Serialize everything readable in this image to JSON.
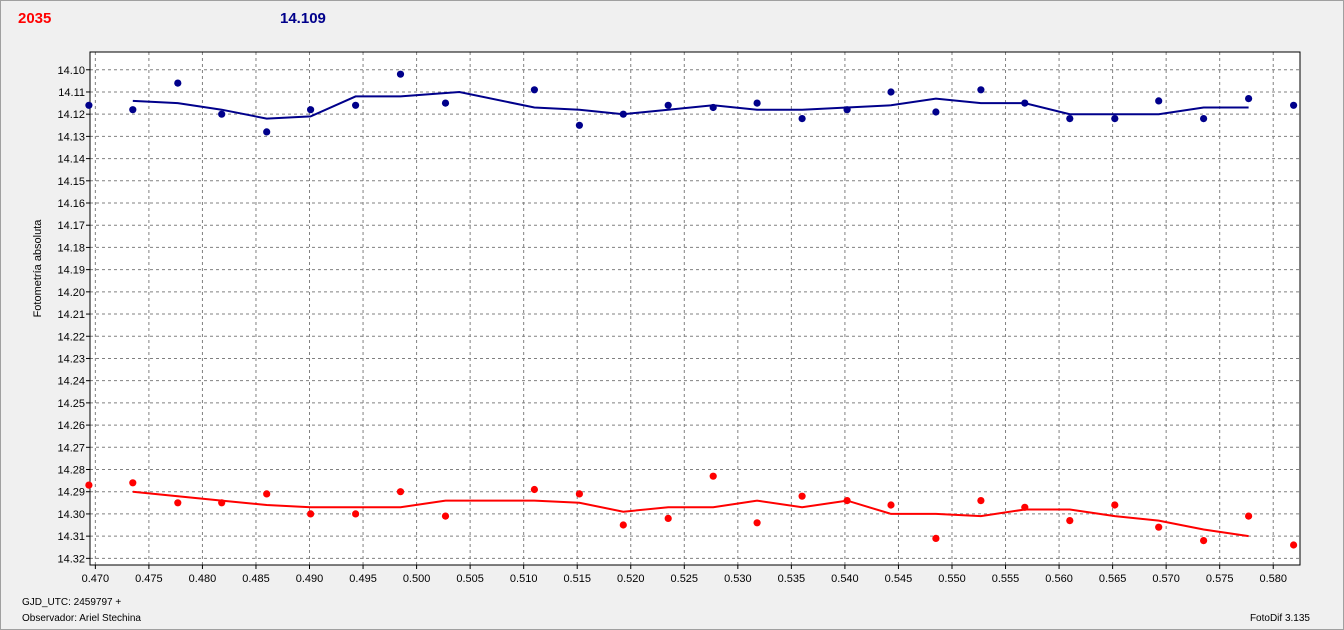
{
  "header": {
    "left_value": "2035",
    "right_value": "14.109"
  },
  "footer": {
    "gjd": "GJD_UTC: 2459797 +",
    "observer": "Observador: Ariel Stechina",
    "version": "FotoDif 3.135"
  },
  "colors": {
    "series_red": "#ff0000",
    "series_blue": "#00008b",
    "grid": "#808080",
    "plot_bg": "#ffffff"
  },
  "chart_data": {
    "type": "scatter",
    "ylabel": "Fotometría absoluta",
    "xlabel": "",
    "xlim": [
      0.4695,
      0.5825
    ],
    "ylim": [
      14.323,
      14.092
    ],
    "y_inverted": true,
    "grid": true,
    "xticks": [
      "0.470",
      "0.475",
      "0.480",
      "0.485",
      "0.490",
      "0.495",
      "0.500",
      "0.505",
      "0.510",
      "0.515",
      "0.520",
      "0.525",
      "0.530",
      "0.535",
      "0.540",
      "0.545",
      "0.550",
      "0.555",
      "0.560",
      "0.565",
      "0.570",
      "0.575",
      "0.580"
    ],
    "yticks": [
      "14.10",
      "14.11",
      "14.12",
      "14.13",
      "14.14",
      "14.15",
      "14.16",
      "14.17",
      "14.18",
      "14.19",
      "14.20",
      "14.21",
      "14.22",
      "14.23",
      "14.24",
      "14.25",
      "14.26",
      "14.27",
      "14.28",
      "14.29",
      "14.30",
      "14.31",
      "14.32"
    ],
    "series": [
      {
        "color": "#00008b",
        "points": [
          [
            0.4694,
            14.116
          ],
          [
            0.4735,
            14.118
          ],
          [
            0.4777,
            14.106
          ],
          [
            0.4818,
            14.12
          ],
          [
            0.486,
            14.128
          ],
          [
            0.4901,
            14.118
          ],
          [
            0.4943,
            14.116
          ],
          [
            0.4985,
            14.102
          ],
          [
            0.5027,
            14.115
          ],
          [
            0.511,
            14.109
          ],
          [
            0.5152,
            14.125
          ],
          [
            0.5193,
            14.12
          ],
          [
            0.5235,
            14.116
          ],
          [
            0.5277,
            14.117
          ],
          [
            0.5318,
            14.115
          ],
          [
            0.536,
            14.122
          ],
          [
            0.5402,
            14.118
          ],
          [
            0.5443,
            14.11
          ],
          [
            0.5485,
            14.119
          ],
          [
            0.5527,
            14.109
          ],
          [
            0.5568,
            14.115
          ],
          [
            0.561,
            14.122
          ],
          [
            0.5652,
            14.122
          ],
          [
            0.5693,
            14.114
          ],
          [
            0.5735,
            14.122
          ],
          [
            0.5777,
            14.113
          ],
          [
            0.5819,
            14.116
          ]
        ],
        "line": [
          [
            0.4735,
            14.114
          ],
          [
            0.4777,
            14.115
          ],
          [
            0.4818,
            14.118
          ],
          [
            0.486,
            14.122
          ],
          [
            0.4901,
            14.121
          ],
          [
            0.4943,
            14.112
          ],
          [
            0.4985,
            14.112
          ],
          [
            0.504,
            14.11
          ],
          [
            0.511,
            14.117
          ],
          [
            0.5152,
            14.118
          ],
          [
            0.5193,
            14.12
          ],
          [
            0.5235,
            14.118
          ],
          [
            0.5277,
            14.116
          ],
          [
            0.5318,
            14.118
          ],
          [
            0.536,
            14.118
          ],
          [
            0.5402,
            14.117
          ],
          [
            0.5443,
            14.116
          ],
          [
            0.5485,
            14.113
          ],
          [
            0.5527,
            14.115
          ],
          [
            0.5568,
            14.115
          ],
          [
            0.561,
            14.12
          ],
          [
            0.5652,
            14.12
          ],
          [
            0.5693,
            14.12
          ],
          [
            0.5735,
            14.117
          ],
          [
            0.5777,
            14.117
          ]
        ]
      },
      {
        "color": "#ff0000",
        "points": [
          [
            0.4694,
            14.287
          ],
          [
            0.4735,
            14.286
          ],
          [
            0.4777,
            14.295
          ],
          [
            0.4818,
            14.295
          ],
          [
            0.486,
            14.291
          ],
          [
            0.4901,
            14.3
          ],
          [
            0.4943,
            14.3
          ],
          [
            0.4985,
            14.29
          ],
          [
            0.5027,
            14.301
          ],
          [
            0.511,
            14.289
          ],
          [
            0.5152,
            14.291
          ],
          [
            0.5193,
            14.305
          ],
          [
            0.5235,
            14.302
          ],
          [
            0.5277,
            14.283
          ],
          [
            0.5318,
            14.304
          ],
          [
            0.536,
            14.292
          ],
          [
            0.5402,
            14.294
          ],
          [
            0.5443,
            14.296
          ],
          [
            0.5485,
            14.311
          ],
          [
            0.5527,
            14.294
          ],
          [
            0.5568,
            14.297
          ],
          [
            0.561,
            14.303
          ],
          [
            0.5652,
            14.296
          ],
          [
            0.5693,
            14.306
          ],
          [
            0.5735,
            14.312
          ],
          [
            0.5777,
            14.301
          ],
          [
            0.5819,
            14.314
          ]
        ],
        "line": [
          [
            0.4735,
            14.29
          ],
          [
            0.4777,
            14.292
          ],
          [
            0.4818,
            14.294
          ],
          [
            0.486,
            14.296
          ],
          [
            0.4901,
            14.297
          ],
          [
            0.4943,
            14.297
          ],
          [
            0.4985,
            14.297
          ],
          [
            0.5027,
            14.294
          ],
          [
            0.511,
            14.294
          ],
          [
            0.5152,
            14.295
          ],
          [
            0.5193,
            14.299
          ],
          [
            0.5235,
            14.297
          ],
          [
            0.5277,
            14.297
          ],
          [
            0.5318,
            14.294
          ],
          [
            0.536,
            14.297
          ],
          [
            0.5402,
            14.294
          ],
          [
            0.5443,
            14.3
          ],
          [
            0.5485,
            14.3
          ],
          [
            0.5527,
            14.301
          ],
          [
            0.5568,
            14.298
          ],
          [
            0.561,
            14.298
          ],
          [
            0.5652,
            14.301
          ],
          [
            0.5693,
            14.303
          ],
          [
            0.5735,
            14.307
          ],
          [
            0.5777,
            14.31
          ]
        ]
      }
    ]
  }
}
